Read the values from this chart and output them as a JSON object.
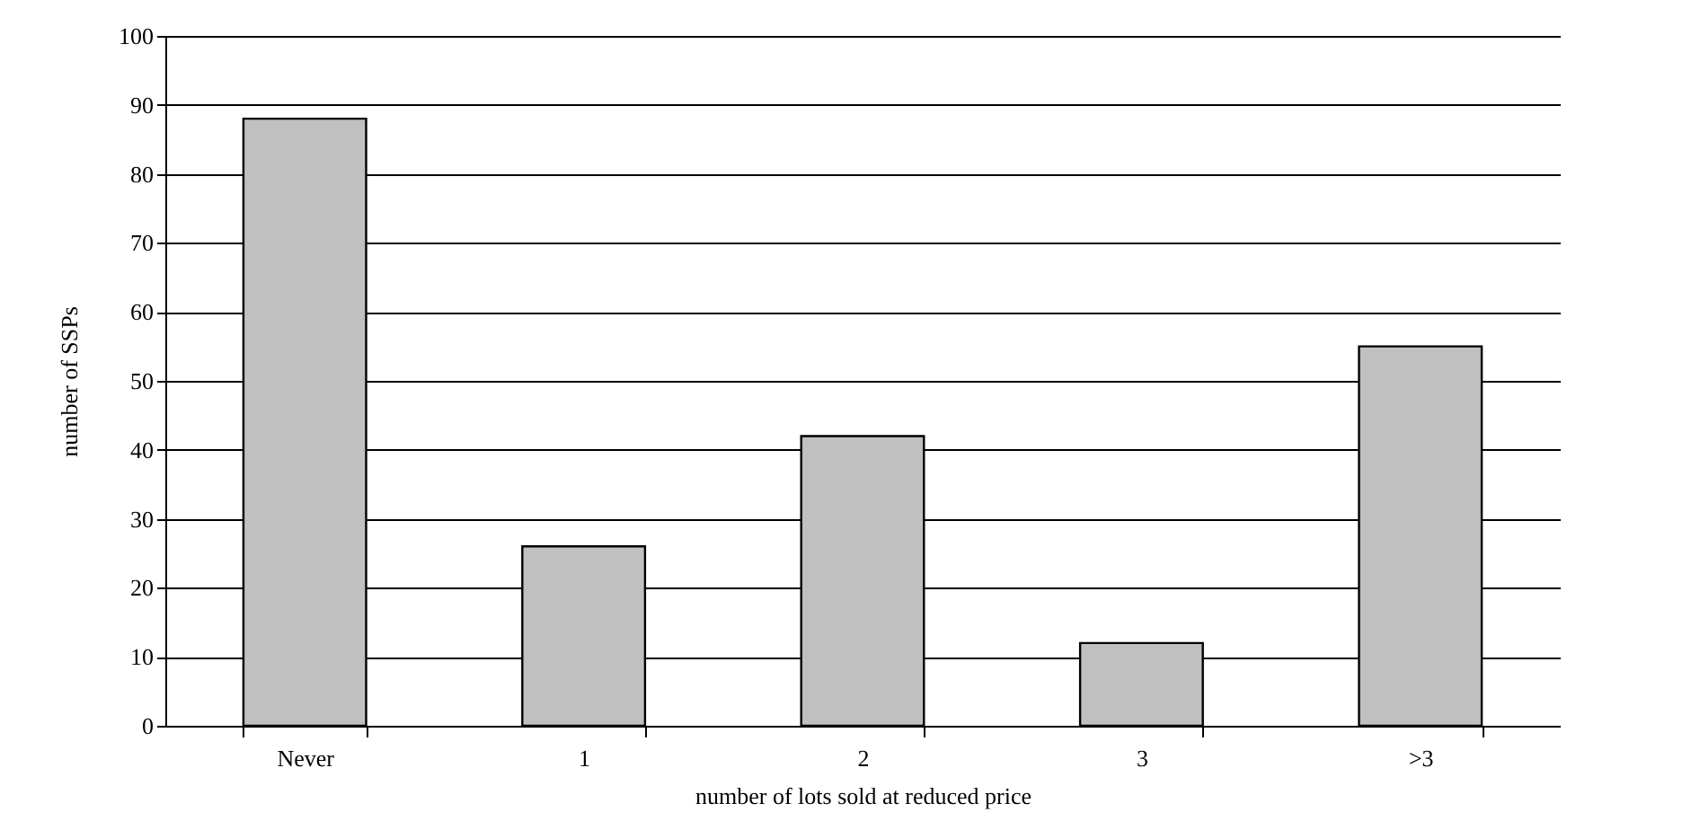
{
  "chart_data": {
    "type": "bar",
    "xlabel": "number of lots sold at reduced price",
    "ylabel": "number of SSPs",
    "categories": [
      "Never",
      "1",
      "2",
      "3",
      ">3"
    ],
    "values": [
      88,
      26,
      42,
      12,
      55
    ],
    "color": "#c0c0c0",
    "ylim": [
      0,
      100
    ],
    "yticks": [
      0,
      10,
      20,
      30,
      40,
      50,
      60,
      70,
      80,
      90,
      100
    ],
    "grid": "y"
  }
}
